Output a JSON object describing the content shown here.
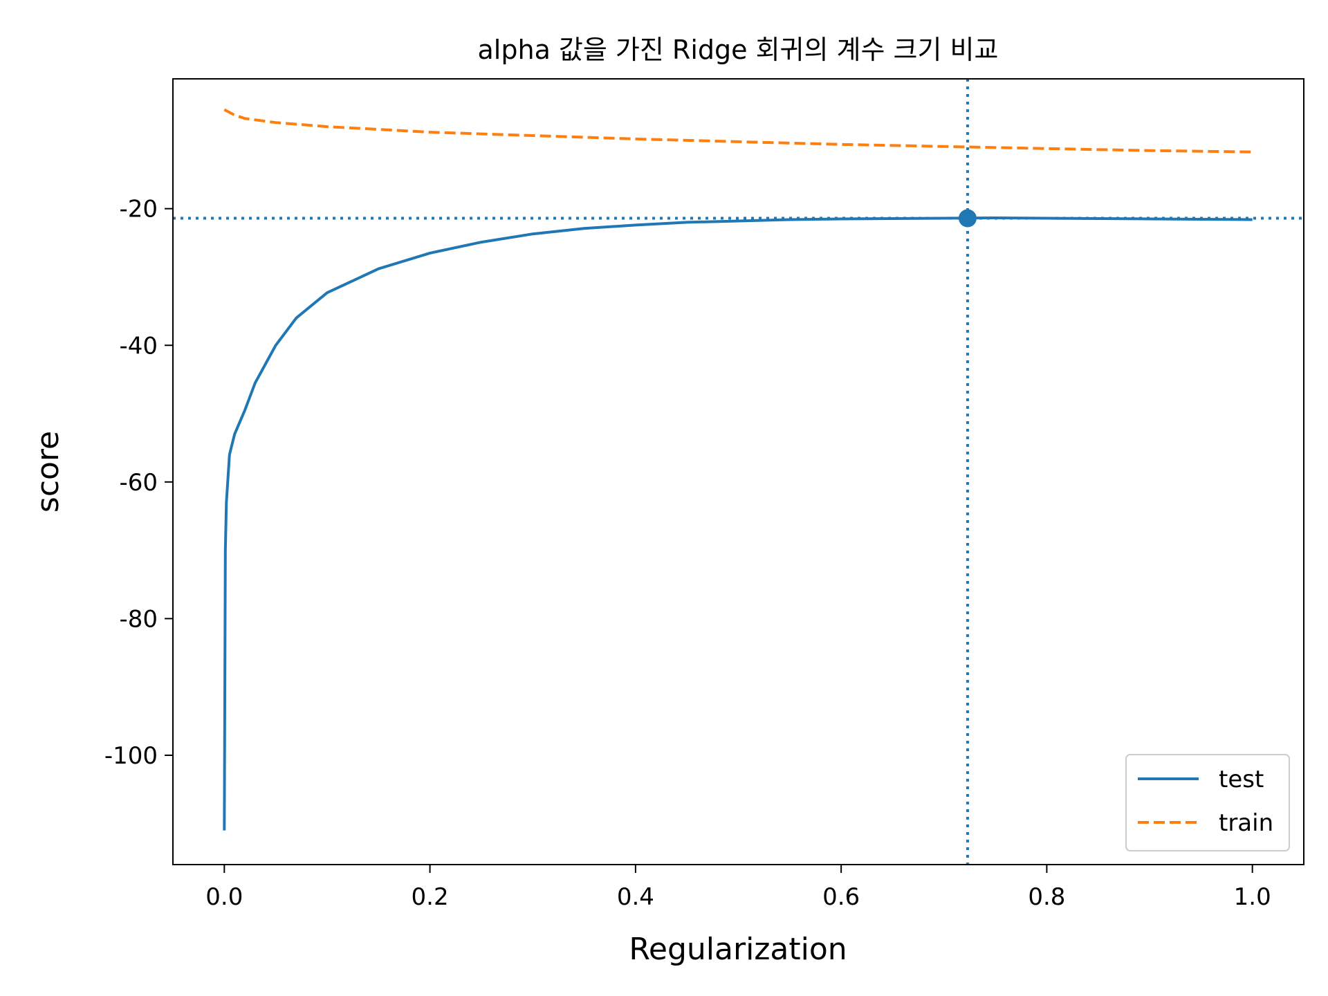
{
  "chart_data": {
    "type": "line",
    "title": "alpha 값을 가진 Ridge 회귀의 계수 크기 비교",
    "xlabel": "Regularization",
    "ylabel": "score",
    "xlim": [
      -0.05,
      1.05
    ],
    "ylim": [
      -116,
      -1
    ],
    "xticks": [
      0.0,
      0.2,
      0.4,
      0.6,
      0.8,
      1.0
    ],
    "xtick_labels": [
      "0.0",
      "0.2",
      "0.4",
      "0.6",
      "0.8",
      "1.0"
    ],
    "yticks": [
      -20,
      -40,
      -60,
      -80,
      -100
    ],
    "ytick_labels": [
      "-20",
      "-40",
      "-60",
      "-80",
      "-100"
    ],
    "grid": false,
    "legend_position": "bottom-right",
    "series": [
      {
        "name": "test",
        "style": "solid",
        "color": "#1f77b4",
        "x": [
          0.0,
          0.001,
          0.002,
          0.005,
          0.01,
          0.02,
          0.03,
          0.05,
          0.07,
          0.1,
          0.15,
          0.2,
          0.25,
          0.3,
          0.35,
          0.4,
          0.45,
          0.5,
          0.55,
          0.6,
          0.65,
          0.7,
          0.75,
          0.8,
          0.85,
          0.9,
          0.95,
          1.0
        ],
        "y": [
          -111,
          -70,
          -63,
          -56,
          -53,
          -49.5,
          -45.5,
          -40,
          -36,
          -32.3,
          -28.8,
          -26.5,
          -24.9,
          -23.7,
          -22.9,
          -22.4,
          -22.0,
          -21.8,
          -21.6,
          -21.5,
          -21.45,
          -21.4,
          -21.35,
          -21.4,
          -21.45,
          -21.5,
          -21.55,
          -21.6
        ]
      },
      {
        "name": "train",
        "style": "dashed",
        "color": "#ff7f0e",
        "x": [
          0.0,
          0.01,
          0.02,
          0.05,
          0.1,
          0.15,
          0.2,
          0.3,
          0.4,
          0.5,
          0.6,
          0.7,
          0.8,
          0.9,
          1.0
        ],
        "y": [
          -5.5,
          -6.3,
          -6.8,
          -7.4,
          -8.0,
          -8.4,
          -8.8,
          -9.3,
          -9.8,
          -10.2,
          -10.6,
          -10.9,
          -11.2,
          -11.5,
          -11.7
        ]
      }
    ],
    "best_point": {
      "x": 0.723,
      "y": -21.4,
      "color": "#1f77b4"
    }
  }
}
